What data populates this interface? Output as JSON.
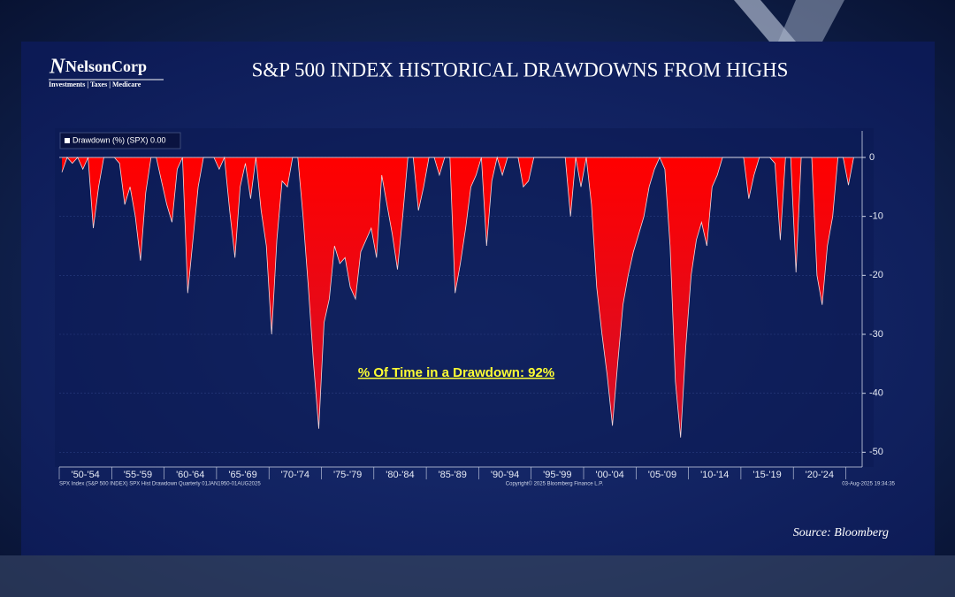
{
  "logo": {
    "name": "NelsonCorp",
    "tagline": "Investments | Taxes | Medicare"
  },
  "source": "Source: Bloomberg",
  "chart_data": {
    "type": "area",
    "title": "S&P 500 INDEX HISTORICAL DRAWDOWNS FROM HIGHS",
    "annotation": "% Of Time in a Drawdown: 92%",
    "footer": {
      "left": "SPX Index (S&P 500 INDEX) SPX Hist Drawdown  Quarterly 01JAN1950-01AUG2025",
      "center": "Copyright© 2025 Bloomberg Finance L.P.",
      "right": "03-Aug-2025 19:34:35"
    },
    "categories": [
      "'50-'54",
      "'55-'59",
      "'60-'64",
      "'65-'69",
      "'70-'74",
      "'75-'79",
      "'80-'84",
      "'85-'89",
      "'90-'94",
      "'95-'99",
      "'00-'04",
      "'05-'09",
      "'10-'14",
      "'15-'19",
      "'20-'24",
      null
    ],
    "series": [
      {
        "name": "Drawdown (%) (SPX) 0.00",
        "color": "#ff0a0a",
        "values": [
          [
            -2.5,
            0,
            -1,
            0,
            -2,
            0,
            -12,
            -5,
            0,
            0
          ],
          [
            0,
            -1,
            -8,
            -5,
            -10,
            -17.5,
            -6,
            0,
            0,
            -4
          ],
          [
            -8,
            -11,
            -2,
            0,
            -23,
            -14,
            -5,
            0,
            0,
            0
          ],
          [
            -2,
            0,
            -9,
            -17,
            -5,
            -1,
            -7,
            0,
            -9,
            -15
          ],
          [
            -30,
            -14,
            -4,
            -5,
            0,
            0,
            -10,
            -22,
            -35,
            -46
          ],
          [
            -28,
            -24,
            -15,
            -18,
            -17,
            -22,
            -24,
            -16,
            -14,
            -12
          ],
          [
            -17,
            -3,
            -8,
            -13,
            -19,
            -10,
            0,
            0,
            -9,
            -5
          ],
          [
            0,
            0,
            -3,
            0,
            0,
            -23,
            -18,
            -12,
            -5,
            -3
          ],
          [
            0,
            -15,
            -4,
            0,
            -3,
            0,
            0,
            0,
            -5,
            -4
          ],
          [
            0,
            0,
            0,
            0,
            0,
            0,
            0,
            -10,
            0,
            -5
          ],
          [
            0,
            -8,
            -22,
            -30,
            -37,
            -45.5,
            -35,
            -25,
            -20,
            -16
          ],
          [
            -13,
            -10,
            -5,
            -2,
            0,
            -2,
            -15,
            -38,
            -47.5,
            -32
          ],
          [
            -20,
            -14,
            -11,
            -15,
            -5,
            -3,
            0,
            0,
            0,
            0
          ],
          [
            0,
            -7,
            -3,
            0,
            0,
            0,
            -1,
            -14,
            0,
            0
          ],
          [
            -19.5,
            0,
            0,
            0,
            -20,
            -25,
            -15,
            -10,
            0,
            0
          ],
          [
            -4.7,
            0
          ]
        ]
      }
    ],
    "ylim": [
      -52.5,
      4.5
    ],
    "yticks": [
      0,
      -10,
      -20,
      -30,
      -40,
      -50
    ],
    "grid": true
  }
}
